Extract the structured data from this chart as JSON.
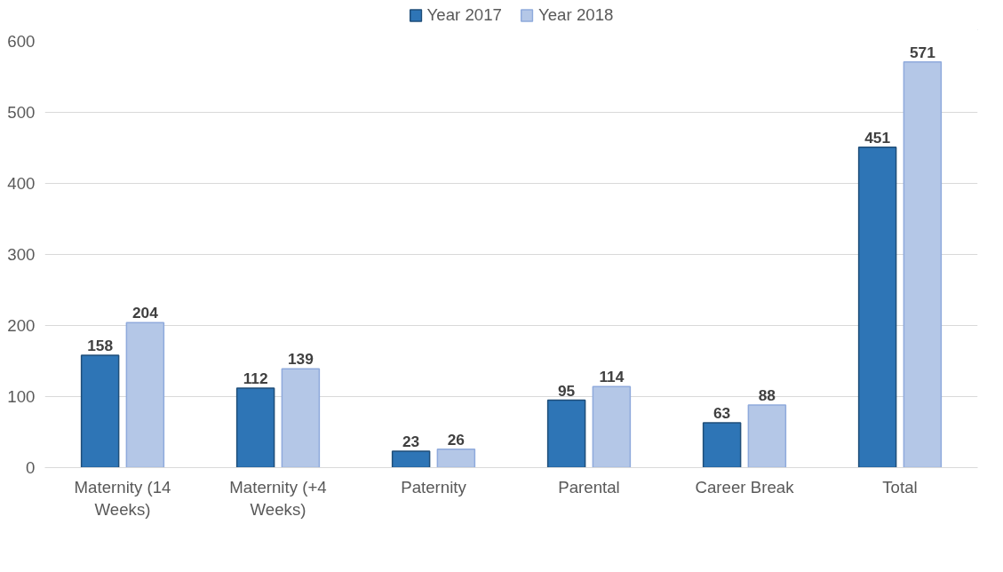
{
  "chart_data": {
    "type": "bar",
    "categories": [
      "Maternity (14 Weeks)",
      "Maternity (+4 Weeks)",
      "Paternity",
      "Parental",
      "Career Break",
      "Total"
    ],
    "series": [
      {
        "name": "Year 2017",
        "color": "#2e75b6",
        "values": [
          158,
          112,
          23,
          95,
          63,
          451
        ]
      },
      {
        "name": "Year 2018",
        "color": "#b4c7e7",
        "values": [
          204,
          139,
          26,
          114,
          88,
          571
        ]
      }
    ],
    "ylim": [
      0,
      600
    ],
    "yticks": [
      0,
      100,
      200,
      300,
      400,
      500,
      600
    ],
    "grid": "y",
    "legend": "top",
    "data_labels": true
  }
}
